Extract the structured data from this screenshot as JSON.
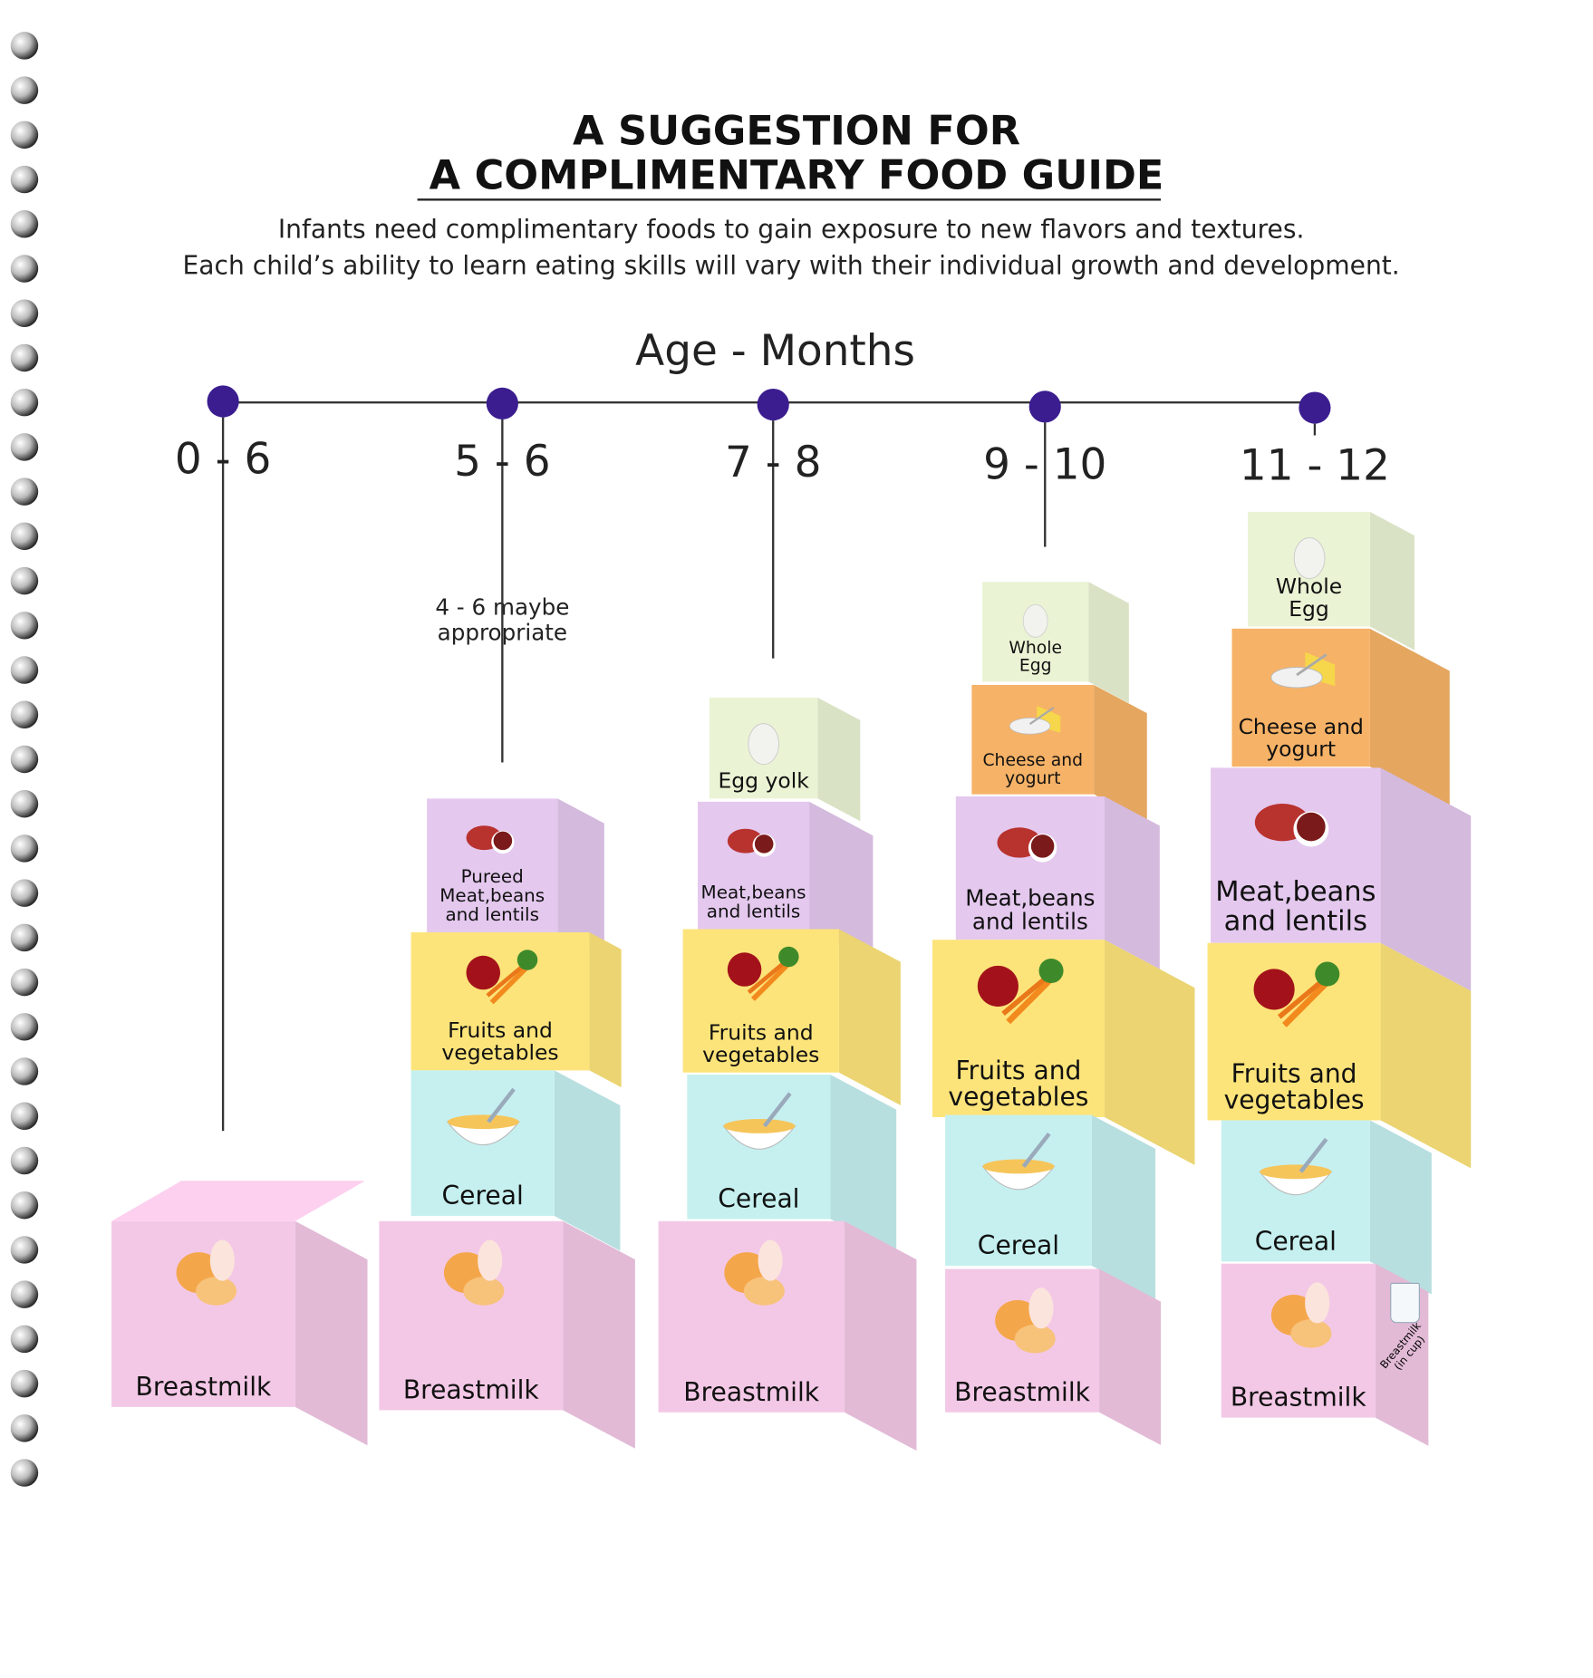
{
  "title_line1": "A SUGGESTION FOR",
  "title_line2": "A COMPLIMENTARY FOOD GUIDE",
  "subtitle_line1": "Infants need complimentary foods to gain exposure to new flavors and textures.",
  "subtitle_line2": "Each child’s ability to learn eating skills will vary with their individual growth and development.",
  "axis_title": "Age - Months",
  "note": "4 - 6 maybe\nappropriate",
  "cup_label": "Breastmilk\n(in cup)",
  "colors": {
    "timeline_dot": "#3b1d8f",
    "breastmilk": "#f3c8e6",
    "cereal": "#c6f0f0",
    "fruits": "#fde47a",
    "meat": "#e4c8ee",
    "cheese": "#f6b267",
    "egg": "#eaf3d4"
  },
  "columns": [
    {
      "age": "0 - 6",
      "blocks": [
        {
          "type": "breastmilk",
          "label": "Breastmilk",
          "icon": "breastfeeding-baby-icon"
        }
      ]
    },
    {
      "age": "5 - 6",
      "blocks": [
        {
          "type": "breastmilk",
          "label": "Breastmilk",
          "icon": "breastfeeding-baby-icon"
        },
        {
          "type": "cereal",
          "label": "Cereal",
          "icon": "cereal-bowl-icon"
        },
        {
          "type": "fruits",
          "label": "Fruits and\nvegetables",
          "icon": "apple-carrot-icon"
        },
        {
          "type": "meat",
          "label": "Pureed\nMeat,beans\nand lentils",
          "icon": "meat-beans-icon"
        }
      ]
    },
    {
      "age": "7 - 8",
      "blocks": [
        {
          "type": "breastmilk",
          "label": "Breastmilk",
          "icon": "breastfeeding-baby-icon"
        },
        {
          "type": "cereal",
          "label": "Cereal",
          "icon": "cereal-bowl-icon"
        },
        {
          "type": "fruits",
          "label": "Fruits and\nvegetables",
          "icon": "apple-carrot-icon"
        },
        {
          "type": "meat",
          "label": "Meat,beans\nand lentils",
          "icon": "meat-beans-icon"
        },
        {
          "type": "egg",
          "label": "Egg yolk",
          "icon": "fried-egg-icon"
        }
      ]
    },
    {
      "age": "9 - 10",
      "blocks": [
        {
          "type": "breastmilk",
          "label": "Breastmilk",
          "icon": "breastfeeding-baby-icon"
        },
        {
          "type": "cereal",
          "label": "Cereal",
          "icon": "cereal-bowl-icon"
        },
        {
          "type": "fruits",
          "label": "Fruits and\nvegetables",
          "icon": "apple-carrot-icon"
        },
        {
          "type": "meat",
          "label": "Meat,beans\nand lentils",
          "icon": "meat-beans-icon"
        },
        {
          "type": "cheese",
          "label": "Cheese and\nyogurt",
          "icon": "cheese-yogurt-icon"
        },
        {
          "type": "egg",
          "label": "Whole\nEgg",
          "icon": "whole-egg-icon"
        }
      ]
    },
    {
      "age": "11 - 12",
      "blocks": [
        {
          "type": "breastmilk",
          "label": "Breastmilk",
          "icon": "breastfeeding-baby-icon"
        },
        {
          "type": "cereal",
          "label": "Cereal",
          "icon": "cereal-bowl-icon"
        },
        {
          "type": "fruits",
          "label": "Fruits and\nvegetables",
          "icon": "apple-carrot-icon"
        },
        {
          "type": "meat",
          "label": "Meat,beans\nand lentils",
          "icon": "meat-beans-icon"
        },
        {
          "type": "cheese",
          "label": "Cheese and\nyogurt",
          "icon": "cheese-yogurt-icon"
        },
        {
          "type": "egg",
          "label": "Whole\nEgg",
          "icon": "whole-egg-icon"
        }
      ]
    }
  ]
}
